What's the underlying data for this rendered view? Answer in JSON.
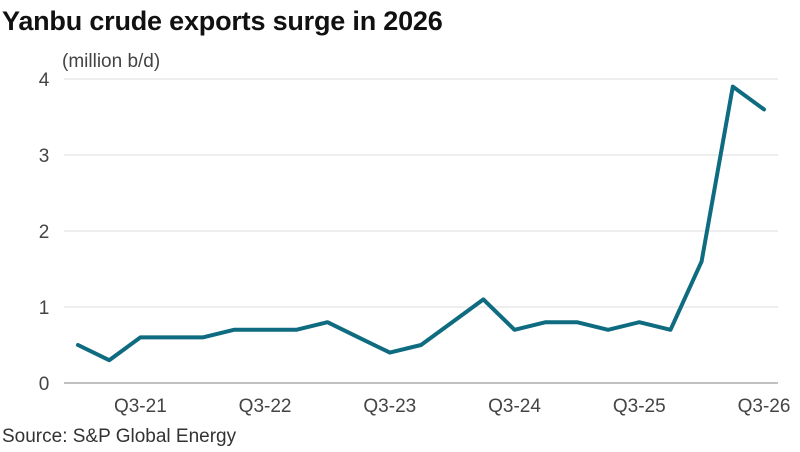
{
  "title": "Yanbu crude exports surge in 2026",
  "source": "Source: S&P Global Energy",
  "chart_data": {
    "type": "line",
    "title": "Yanbu crude exports surge in 2026",
    "ylabel": "(million b/d)",
    "xlabel": "",
    "ylim": [
      0,
      4
    ],
    "yticks": [
      0,
      1,
      2,
      3,
      4
    ],
    "grid": true,
    "x": [
      "Q1-21",
      "Q2-21",
      "Q3-21",
      "Q4-21",
      "Q1-22",
      "Q2-22",
      "Q3-22",
      "Q4-22",
      "Q1-23",
      "Q2-23",
      "Q3-23",
      "Q4-23",
      "Q1-24",
      "Q2-24",
      "Q3-24",
      "Q4-24",
      "Q1-25",
      "Q2-25",
      "Q3-25",
      "Q4-25",
      "Q1-26",
      "Q2-26",
      "Q3-26"
    ],
    "xtick_labels": [
      "Q3-21",
      "Q3-22",
      "Q3-23",
      "Q3-24",
      "Q3-25",
      "Q3-26"
    ],
    "series": [
      {
        "name": "",
        "color": "#0e6b80",
        "values": [
          0.5,
          0.3,
          0.6,
          0.6,
          0.6,
          0.7,
          0.7,
          0.7,
          0.8,
          0.6,
          0.4,
          0.5,
          0.8,
          1.1,
          0.7,
          0.8,
          0.8,
          0.7,
          0.8,
          0.7,
          1.6,
          3.9,
          3.6
        ]
      }
    ]
  }
}
